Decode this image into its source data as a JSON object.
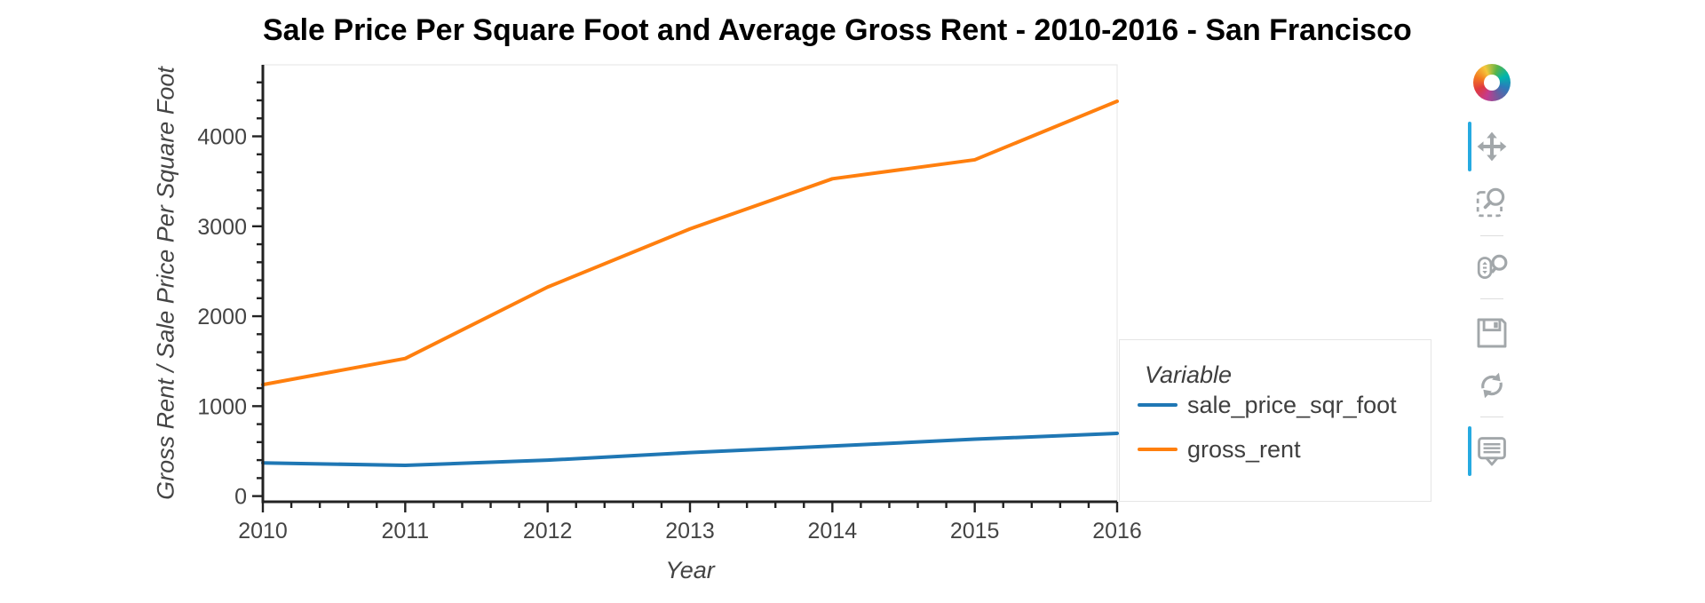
{
  "title": "Sale Price Per Square Foot and Average Gross Rent - 2010-2016 - San Francisco",
  "chart_data": {
    "type": "line",
    "x": [
      2010,
      2011,
      2012,
      2013,
      2014,
      2015,
      2016
    ],
    "series": [
      {
        "name": "sale_price_sqr_foot",
        "color": "#1f77b4",
        "values": [
          369.34,
          341.9,
          399.39,
          483.6,
          556.28,
          632.54,
          697.64
        ]
      },
      {
        "name": "gross_rent",
        "color": "#ff7f0e",
        "values": [
          1239,
          1530,
          2324,
          2971,
          3528,
          3739,
          4390
        ]
      }
    ],
    "xlabel": "Year",
    "ylabel": "Gross Rent / Sale Price Per Square Foot",
    "xlim": [
      2010,
      2016
    ],
    "ylim": [
      -63,
      4795
    ],
    "x_ticks": [
      2010,
      2011,
      2012,
      2013,
      2014,
      2015,
      2016
    ],
    "y_ticks": [
      0,
      1000,
      2000,
      3000,
      4000
    ],
    "x_minor_step": 0.2,
    "y_minor_step": 200,
    "grid": false,
    "line_width": 4,
    "axis_color": "#222222",
    "tick_label_color": "#444444",
    "plot_outline_color": "#e5e5e5",
    "legend_position": "right"
  },
  "legend": {
    "title": "Variable",
    "items": [
      {
        "label": "sale_price_sqr_foot",
        "color": "#1f77b4"
      },
      {
        "label": "gross_rent",
        "color": "#ff7f0e"
      }
    ]
  },
  "toolbar": {
    "logo_icon": "bokeh-logo",
    "active_color": "#26aae1",
    "icon_color": "#a2a7aa",
    "tools": [
      {
        "name": "pan",
        "icon": "pan-icon",
        "active": true
      },
      {
        "name": "box-zoom",
        "icon": "box-zoom-icon",
        "active": false
      },
      {
        "name": "wheel-zoom",
        "icon": "wheel-zoom-icon",
        "active": false
      },
      {
        "name": "save",
        "icon": "save-icon",
        "active": false
      },
      {
        "name": "reset",
        "icon": "reset-icon",
        "active": false
      },
      {
        "name": "hover",
        "icon": "hover-icon",
        "active": true
      }
    ]
  }
}
